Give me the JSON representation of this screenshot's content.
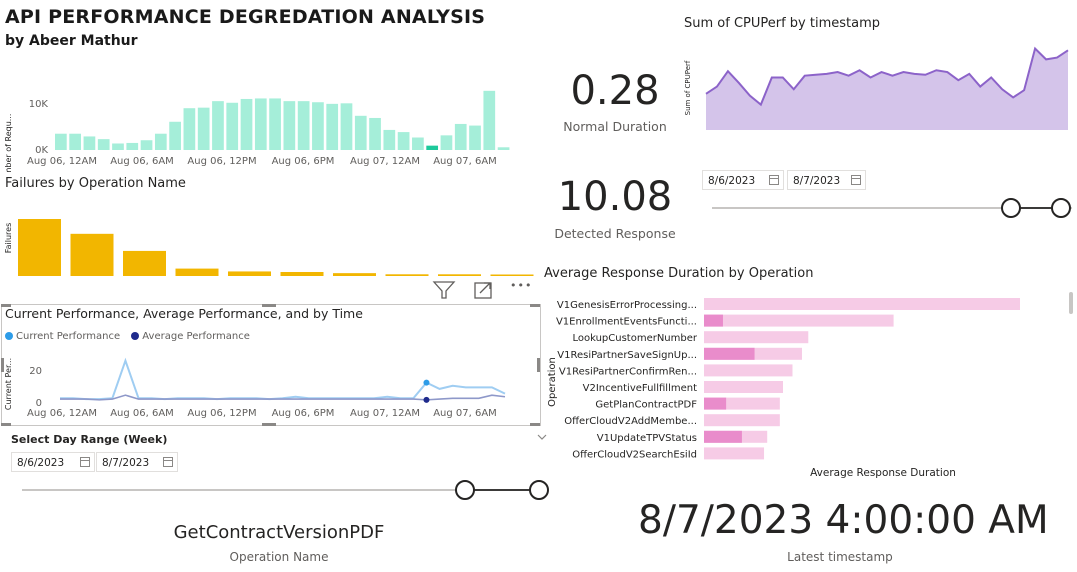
{
  "header": {
    "title": "API PERFORMANCE DEGREDATION ANALYSIS",
    "subtitle": "by Abeer Mathur"
  },
  "requests_chart": {
    "chart_data": {
      "type": "bar",
      "ylabel": "Number of Requ...",
      "yticks": [
        "10K",
        "0K"
      ],
      "ylim": [
        0,
        14000
      ],
      "xticks": [
        "Aug 06, 12AM",
        "Aug 06, 6AM",
        "Aug 06, 12PM",
        "Aug 06, 6PM",
        "Aug 07, 12AM",
        "Aug 07, 6AM"
      ],
      "values": [
        3000,
        3000,
        2500,
        2000,
        1200,
        1300,
        1800,
        3000,
        5200,
        7700,
        7800,
        9000,
        8700,
        9400,
        9500,
        9500,
        9000,
        9000,
        8800,
        8500,
        8600,
        6300,
        5900,
        3700,
        3300,
        2300,
        800,
        2700,
        4800,
        4500,
        10900,
        500
      ],
      "highlight_index": 26,
      "colors": {
        "bar": "#a5eed9",
        "highlight": "#1ec99b"
      }
    }
  },
  "failures_chart": {
    "title": "Failures by Operation Name",
    "chart_data": {
      "type": "bar",
      "ylabel": "Failures",
      "values": [
        100,
        74,
        44,
        13,
        8,
        7,
        5,
        3,
        3,
        2
      ],
      "color": "#f2b600"
    }
  },
  "visual_header": {
    "icons": [
      "filter-icon",
      "focus-mode-icon",
      "more-options-icon"
    ],
    "more_label": "•••"
  },
  "perf_chart": {
    "title": "Current Performance, Average Performance, and by Time",
    "legend": [
      {
        "name": "Current Performance",
        "color": "#2d9ce8"
      },
      {
        "name": "Average Performance",
        "color": "#1f2a8c"
      }
    ],
    "chart_data": {
      "type": "line",
      "ylabel": "Current Per...",
      "yticks": [
        "20",
        "0"
      ],
      "ylim": [
        0,
        30
      ],
      "xticks": [
        "Aug 06, 12AM",
        "Aug 06, 6AM",
        "Aug 06, 12PM",
        "Aug 06, 6PM",
        "Aug 07, 12AM",
        "Aug 07, 6AM"
      ],
      "series": [
        {
          "name": "Current Performance",
          "values": [
            3,
            3,
            2.5,
            2.5,
            3,
            27,
            3,
            3,
            2.5,
            3,
            3,
            3,
            2.5,
            3,
            3,
            3,
            2.5,
            3,
            4,
            3,
            3,
            3,
            3,
            3,
            3,
            4,
            3,
            3,
            13,
            9,
            11,
            10,
            10,
            10,
            6
          ]
        },
        {
          "name": "Average Performance",
          "values": [
            2.5,
            2.5,
            2.5,
            2,
            2.5,
            5,
            2.5,
            2.5,
            2.5,
            2.5,
            2.5,
            2.5,
            2.5,
            2.5,
            2.5,
            2.5,
            2.5,
            2.5,
            2.5,
            2.5,
            2.5,
            2.5,
            2.5,
            2.5,
            2.5,
            2.5,
            2.5,
            2.5,
            2,
            2.5,
            3,
            3,
            3,
            5,
            4
          ]
        }
      ]
    }
  },
  "day_slicer": {
    "title": "Select Day Range (Week)",
    "start": "8/6/2023",
    "end": "8/7/2023"
  },
  "normal_card": {
    "value": "0.28",
    "label": "Normal Duration"
  },
  "detected_card": {
    "value": "10.08",
    "label": "Detected Response"
  },
  "cpu_chart": {
    "title": "Sum of CPUPerf by timestamp",
    "chart_data": {
      "type": "area",
      "ylabel": "Sum of CPUPerf",
      "values": [
        40,
        48,
        65,
        52,
        38,
        28,
        58,
        58,
        45,
        60,
        61,
        62,
        64,
        60,
        66,
        58,
        64,
        60,
        64,
        62,
        61,
        66,
        64,
        55,
        62,
        48,
        58,
        45,
        36,
        44,
        90,
        78,
        80,
        88
      ],
      "colors": {
        "line": "#8c63c9",
        "fill": "#d4c4ea"
      }
    }
  },
  "cpu_slicer": {
    "start": "8/6/2023",
    "end": "8/7/2023"
  },
  "response_chart": {
    "title": "Average Response Duration by Operation",
    "ylabel": "Operation",
    "xlabel": "Average Response Duration",
    "chart_data": {
      "type": "bar",
      "categories": [
        "V1GenesisErrorProcessing...",
        "V1EnrollmentEventsFuncti...",
        "LookupCustomerNumber",
        "V1ResiPartnerSaveSignUp...",
        "V1ResiPartnerConfirmRen...",
        "V2IncentiveFullfillment",
        "GetPlanContractPDF",
        "OfferCloudV2AddMembe...",
        "V1UpdateTPVStatus",
        "OfferCloudV2SearchEsiId"
      ],
      "values": [
        100,
        60,
        33,
        31,
        28,
        25,
        24,
        24,
        20,
        19
      ],
      "highlight_values": [
        0,
        6,
        0,
        16,
        0,
        0,
        7,
        0,
        12,
        0
      ],
      "colors": {
        "bar": "#f6cbe6",
        "highlight": "#e98ccb"
      }
    }
  },
  "operation_card": {
    "value": "GetContractVersionPDF",
    "label": "Operation Name"
  },
  "timestamp_card": {
    "value": "8/7/2023 4:00:00 AM",
    "label": "Latest timestamp"
  }
}
